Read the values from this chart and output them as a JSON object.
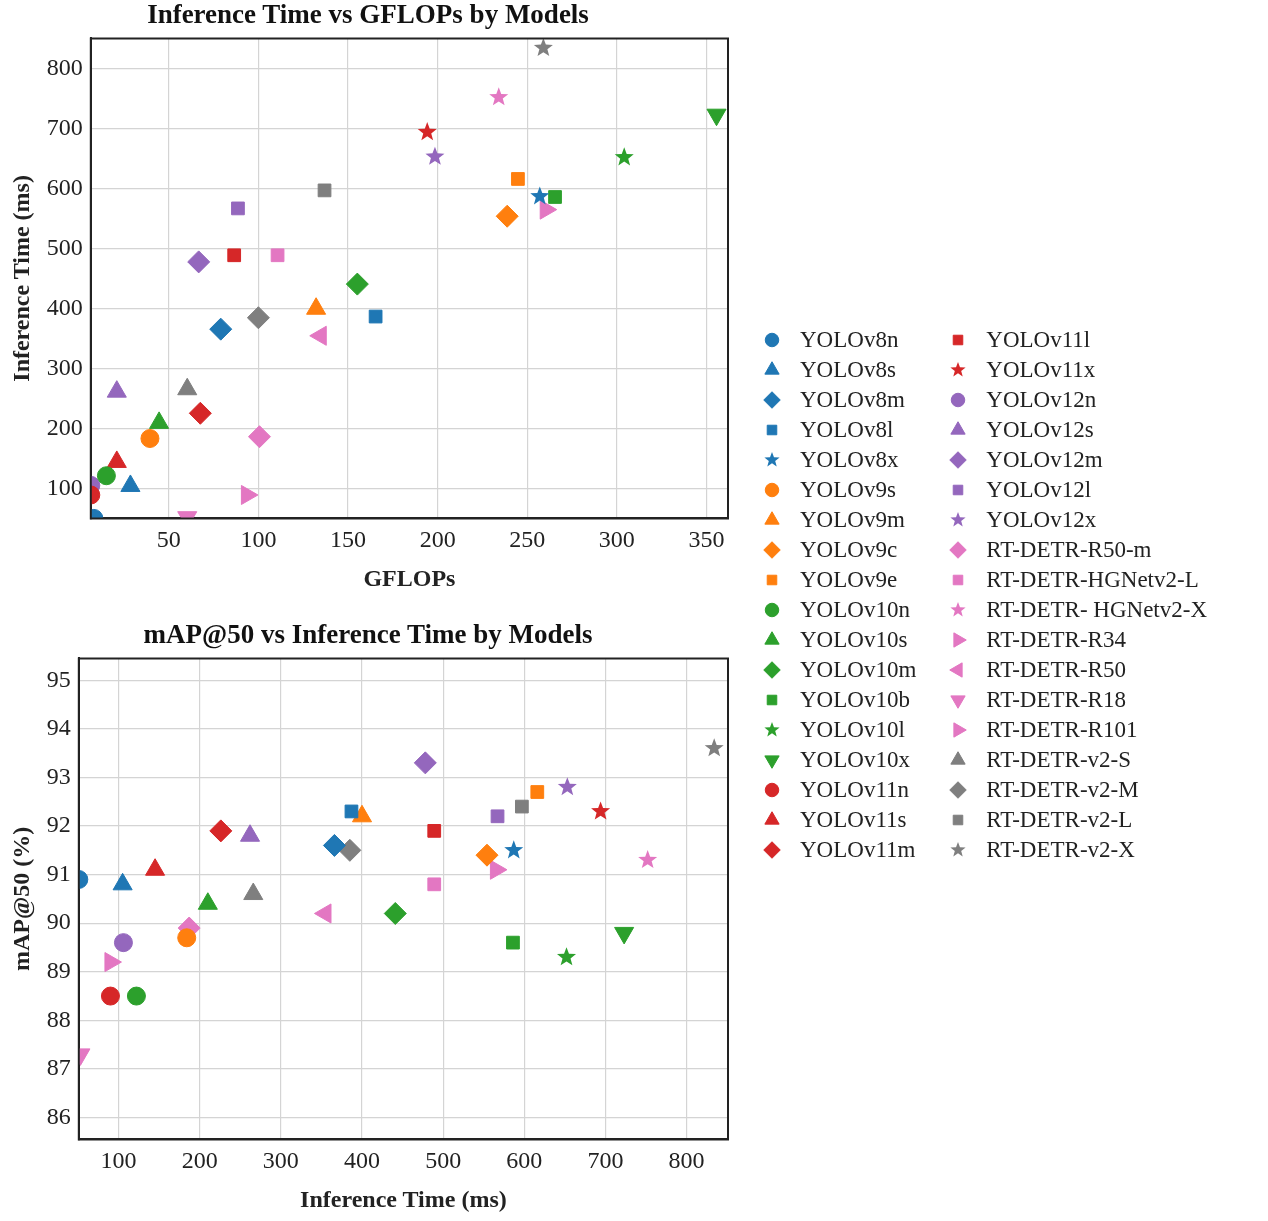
{
  "chart_data": [
    {
      "type": "scatter",
      "title": "Inference Time vs GFLOPs by Models",
      "xlabel": "GFLOPs",
      "ylabel": "Inference Time (ms)",
      "xlim": [
        6.5,
        362
      ],
      "ylim": [
        51,
        850
      ],
      "xticks": [
        50,
        100,
        150,
        200,
        250,
        300,
        350
      ],
      "yticks": [
        100,
        200,
        300,
        400,
        500,
        600,
        700,
        800
      ],
      "grid": true,
      "legend": "right",
      "series": [
        {
          "name": "YOLOv8n",
          "color": "#1f77b4",
          "marker": "circle",
          "x": [
            8.2
          ],
          "values": [
            51
          ]
        },
        {
          "name": "YOLOv8s",
          "color": "#1f77b4",
          "marker": "triangle",
          "x": [
            28.6
          ],
          "values": [
            105
          ]
        },
        {
          "name": "YOLOv8m",
          "color": "#1f77b4",
          "marker": "diamond",
          "x": [
            79
          ],
          "values": [
            366
          ]
        },
        {
          "name": "YOLOv8l",
          "color": "#1f77b4",
          "marker": "square",
          "x": [
            165.4
          ],
          "values": [
            387
          ]
        },
        {
          "name": "YOLOv8x",
          "color": "#1f77b4",
          "marker": "star",
          "x": [
            257
          ],
          "values": [
            587
          ]
        },
        {
          "name": "YOLOv9s",
          "color": "#ff7f0e",
          "marker": "circle",
          "x": [
            39.5
          ],
          "values": [
            184
          ]
        },
        {
          "name": "YOLOv9m",
          "color": "#ff7f0e",
          "marker": "triangle",
          "x": [
            132.2
          ],
          "values": [
            400
          ]
        },
        {
          "name": "YOLOv9c",
          "color": "#ff7f0e",
          "marker": "diamond",
          "x": [
            238.8
          ],
          "values": [
            554
          ]
        },
        {
          "name": "YOLOv9e",
          "color": "#ff7f0e",
          "marker": "square",
          "x": [
            244.8
          ],
          "values": [
            616
          ]
        },
        {
          "name": "YOLOv10n",
          "color": "#2ca02c",
          "marker": "circle",
          "x": [
            15.2
          ],
          "values": [
            122
          ]
        },
        {
          "name": "YOLOv10s",
          "color": "#2ca02c",
          "marker": "triangle",
          "x": [
            44.6
          ],
          "values": [
            210
          ]
        },
        {
          "name": "YOLOv10m",
          "color": "#2ca02c",
          "marker": "diamond",
          "x": [
            155.2
          ],
          "values": [
            441
          ]
        },
        {
          "name": "YOLOv10b",
          "color": "#2ca02c",
          "marker": "square",
          "x": [
            265.5
          ],
          "values": [
            586
          ]
        },
        {
          "name": "YOLOv10l",
          "color": "#2ca02c",
          "marker": "star",
          "x": [
            304.1
          ],
          "values": [
            652
          ]
        },
        {
          "name": "YOLOv10x",
          "color": "#2ca02c",
          "marker": "triangle-down",
          "x": [
            355.6
          ],
          "values": [
            723
          ]
        },
        {
          "name": "YOLOv11n",
          "color": "#d62728",
          "marker": "circle",
          "x": [
            6.5
          ],
          "values": [
            90
          ]
        },
        {
          "name": "YOLOv11s",
          "color": "#d62728",
          "marker": "triangle",
          "x": [
            21
          ],
          "values": [
            145
          ]
        },
        {
          "name": "YOLOv11m",
          "color": "#d62728",
          "marker": "diamond",
          "x": [
            67.6
          ],
          "values": [
            226
          ]
        },
        {
          "name": "YOLOv11l",
          "color": "#d62728",
          "marker": "square",
          "x": [
            86.5
          ],
          "values": [
            489
          ]
        },
        {
          "name": "YOLOv11x",
          "color": "#d62728",
          "marker": "star",
          "x": [
            194.2
          ],
          "values": [
            694
          ]
        },
        {
          "name": "YOLOv12n",
          "color": "#9467bd",
          "marker": "circle",
          "x": [
            6.5
          ],
          "values": [
            106
          ]
        },
        {
          "name": "YOLOv12s",
          "color": "#9467bd",
          "marker": "triangle",
          "x": [
            21
          ],
          "values": [
            262
          ]
        },
        {
          "name": "YOLOv12m",
          "color": "#9467bd",
          "marker": "diamond",
          "x": [
            66.7
          ],
          "values": [
            478
          ]
        },
        {
          "name": "YOLOv12l",
          "color": "#9467bd",
          "marker": "square",
          "x": [
            88.6
          ],
          "values": [
            567
          ]
        },
        {
          "name": "YOLOv12x",
          "color": "#9467bd",
          "marker": "star",
          "x": [
            198.5
          ],
          "values": [
            653
          ]
        },
        {
          "name": "RT-DETR-R50-m",
          "color": "#e377c2",
          "marker": "diamond",
          "x": [
            100.6
          ],
          "values": [
            187
          ]
        },
        {
          "name": "RT-DETR-HGNetv2-L",
          "color": "#e377c2",
          "marker": "square",
          "x": [
            110.7
          ],
          "values": [
            489
          ]
        },
        {
          "name": "RT-DETR- HGNetv2-X",
          "color": "#e377c2",
          "marker": "star",
          "x": [
            234.1
          ],
          "values": [
            752
          ]
        },
        {
          "name": "RT-DETR-R34",
          "color": "#e377c2",
          "marker": "triangle-right",
          "x": [
            260.3
          ],
          "values": [
            565
          ]
        },
        {
          "name": "RT-DETR-R50",
          "color": "#e377c2",
          "marker": "triangle-left",
          "x": [
            134.8
          ],
          "values": [
            355
          ]
        },
        {
          "name": "RT-DETR-R18",
          "color": "#e377c2",
          "marker": "triangle-down",
          "x": [
            60.3
          ],
          "values": [
            53
          ]
        },
        {
          "name": "RT-DETR-R101",
          "color": "#e377c2",
          "marker": "triangle-right",
          "x": [
            93.6
          ],
          "values": [
            90
          ]
        },
        {
          "name": "RT-DETR-v2-S",
          "color": "#7f7f7f",
          "marker": "triangle",
          "x": [
            60.3
          ],
          "values": [
            266
          ]
        },
        {
          "name": "RT-DETR-v2-M",
          "color": "#7f7f7f",
          "marker": "diamond",
          "x": [
            100
          ],
          "values": [
            385
          ]
        },
        {
          "name": "RT-DETR-v2-L",
          "color": "#7f7f7f",
          "marker": "square",
          "x": [
            136.9
          ],
          "values": [
            597
          ]
        },
        {
          "name": "RT-DETR-v2-X",
          "color": "#7f7f7f",
          "marker": "star",
          "x": [
            259
          ],
          "values": [
            834
          ]
        }
      ]
    },
    {
      "type": "scatter",
      "title": "mAP@50 vs Inference Time by Models",
      "xlabel": "Inference Time (ms)",
      "ylabel": "mAP@50 (%)",
      "xlim": [
        51,
        851
      ],
      "ylim": [
        85.55,
        95.45
      ],
      "xticks": [
        100,
        200,
        300,
        400,
        500,
        600,
        700,
        800
      ],
      "yticks": [
        86,
        87,
        88,
        89,
        90,
        91,
        92,
        93,
        94,
        95
      ],
      "grid": true,
      "legend": false,
      "series": [
        {
          "color": "#1f77b4",
          "marker": "circle",
          "x": [
            51
          ],
          "values": [
            90.9
          ]
        },
        {
          "color": "#1f77b4",
          "marker": "triangle",
          "x": [
            105
          ],
          "values": [
            90.8
          ]
        },
        {
          "color": "#1f77b4",
          "marker": "diamond",
          "x": [
            366
          ],
          "values": [
            91.6
          ]
        },
        {
          "color": "#1f77b4",
          "marker": "square",
          "x": [
            387
          ],
          "values": [
            92.3
          ]
        },
        {
          "color": "#1f77b4",
          "marker": "star",
          "x": [
            587
          ],
          "values": [
            91.5
          ]
        },
        {
          "color": "#ff7f0e",
          "marker": "circle",
          "x": [
            184
          ],
          "values": [
            89.7
          ]
        },
        {
          "color": "#ff7f0e",
          "marker": "triangle",
          "x": [
            400
          ],
          "values": [
            92.2
          ]
        },
        {
          "color": "#ff7f0e",
          "marker": "diamond",
          "x": [
            554
          ],
          "values": [
            91.4
          ]
        },
        {
          "color": "#ff7f0e",
          "marker": "square",
          "x": [
            616
          ],
          "values": [
            92.7
          ]
        },
        {
          "color": "#2ca02c",
          "marker": "circle",
          "x": [
            122
          ],
          "values": [
            88.5
          ]
        },
        {
          "color": "#2ca02c",
          "marker": "triangle",
          "x": [
            210
          ],
          "values": [
            90.4
          ]
        },
        {
          "color": "#2ca02c",
          "marker": "diamond",
          "x": [
            441
          ],
          "values": [
            90.2
          ]
        },
        {
          "color": "#2ca02c",
          "marker": "square",
          "x": [
            586
          ],
          "values": [
            89.6
          ]
        },
        {
          "color": "#2ca02c",
          "marker": "star",
          "x": [
            652
          ],
          "values": [
            89.3
          ]
        },
        {
          "color": "#2ca02c",
          "marker": "triangle-down",
          "x": [
            723
          ],
          "values": [
            89.8
          ]
        },
        {
          "color": "#d62728",
          "marker": "circle",
          "x": [
            90
          ],
          "values": [
            88.5
          ]
        },
        {
          "color": "#d62728",
          "marker": "triangle",
          "x": [
            145
          ],
          "values": [
            91.1
          ]
        },
        {
          "color": "#d62728",
          "marker": "diamond",
          "x": [
            226
          ],
          "values": [
            91.9
          ]
        },
        {
          "color": "#d62728",
          "marker": "square",
          "x": [
            489
          ],
          "values": [
            91.9
          ]
        },
        {
          "color": "#d62728",
          "marker": "star",
          "x": [
            694
          ],
          "values": [
            92.3
          ]
        },
        {
          "color": "#9467bd",
          "marker": "circle",
          "x": [
            106
          ],
          "values": [
            89.6
          ]
        },
        {
          "color": "#9467bd",
          "marker": "triangle",
          "x": [
            262
          ],
          "values": [
            91.8
          ]
        },
        {
          "color": "#9467bd",
          "marker": "diamond",
          "x": [
            478
          ],
          "values": [
            93.3
          ]
        },
        {
          "color": "#9467bd",
          "marker": "square",
          "x": [
            567
          ],
          "values": [
            92.2
          ]
        },
        {
          "color": "#9467bd",
          "marker": "star",
          "x": [
            653
          ],
          "values": [
            92.8
          ]
        },
        {
          "color": "#e377c2",
          "marker": "diamond",
          "x": [
            187
          ],
          "values": [
            89.9
          ]
        },
        {
          "color": "#e377c2",
          "marker": "square",
          "x": [
            489
          ],
          "values": [
            90.8
          ]
        },
        {
          "color": "#e377c2",
          "marker": "star",
          "x": [
            752
          ],
          "values": [
            91.3
          ]
        },
        {
          "color": "#e377c2",
          "marker": "triangle-right",
          "x": [
            565
          ],
          "values": [
            91.1
          ]
        },
        {
          "color": "#e377c2",
          "marker": "triangle-left",
          "x": [
            355
          ],
          "values": [
            90.2
          ]
        },
        {
          "color": "#e377c2",
          "marker": "triangle-down",
          "x": [
            53
          ],
          "values": [
            87.3
          ]
        },
        {
          "color": "#e377c2",
          "marker": "triangle-right",
          "x": [
            90
          ],
          "values": [
            89.2
          ]
        },
        {
          "color": "#7f7f7f",
          "marker": "triangle",
          "x": [
            266
          ],
          "values": [
            90.6
          ]
        },
        {
          "color": "#7f7f7f",
          "marker": "diamond",
          "x": [
            385
          ],
          "values": [
            91.5
          ]
        },
        {
          "color": "#7f7f7f",
          "marker": "square",
          "x": [
            597
          ],
          "values": [
            92.4
          ]
        },
        {
          "color": "#7f7f7f",
          "marker": "star",
          "x": [
            834
          ],
          "values": [
            93.6
          ]
        }
      ]
    }
  ]
}
